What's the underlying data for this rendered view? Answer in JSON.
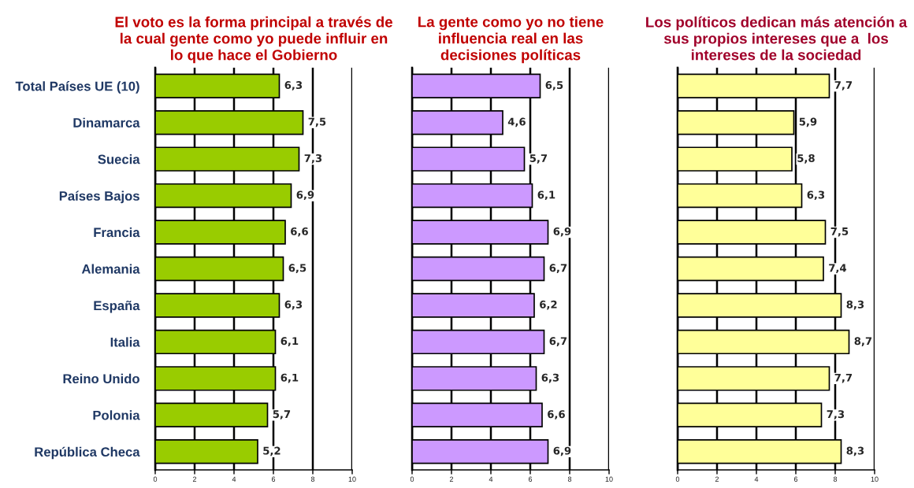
{
  "chart_data": [
    {
      "type": "bar",
      "orientation": "horizontal",
      "title": "El voto es la forma principal a través de\nla cual gente como yo puede influir en\nlo que hace el Gobierno",
      "categories": [
        "Total Países UE (10)",
        "Dinamarca",
        "Suecia",
        "Países Bajos",
        "Francia",
        "Alemania",
        "España",
        "Italia",
        "Reino Unido",
        "Polonia",
        "República Checa"
      ],
      "values": [
        6.3,
        7.5,
        7.3,
        6.9,
        6.6,
        6.5,
        6.3,
        6.1,
        6.1,
        5.7,
        5.2
      ],
      "color": "#99cc00",
      "value_labels": [
        "6,3",
        "7,5",
        "7,3",
        "6,9",
        "6,6",
        "6,5",
        "6,3",
        "6,1",
        "6,1",
        "5,7",
        "5,2"
      ],
      "xlim": [
        0,
        10
      ],
      "xticks": [
        0,
        2,
        4,
        6,
        8,
        10
      ],
      "grid": "x"
    },
    {
      "type": "bar",
      "orientation": "horizontal",
      "title": "La gente como yo no tiene\ninfluencia real en las\ndecisiones políticas",
      "categories": [
        null,
        null,
        null,
        null,
        null,
        null,
        null,
        null,
        null,
        null,
        null
      ],
      "values": [
        6.5,
        4.6,
        5.7,
        6.1,
        6.9,
        6.7,
        6.2,
        6.7,
        6.3,
        6.6,
        6.9
      ],
      "color": "#cc99ff",
      "value_labels": [
        "6,5",
        "4,6",
        "5,7",
        "6,1",
        "6,9",
        "6,7",
        "6,2",
        "6,7",
        "6,3",
        "6,6",
        "6,9"
      ],
      "xlim": [
        0,
        10
      ],
      "xticks": [
        0,
        2,
        4,
        6,
        8,
        10
      ],
      "grid": "x"
    },
    {
      "type": "bar",
      "orientation": "horizontal",
      "title": "Los políticos dedican más atención a\nsus propios intereses que a  los\nintereses de la sociedad",
      "categories": [
        null,
        null,
        null,
        null,
        null,
        null,
        null,
        null,
        null,
        null,
        null
      ],
      "values": [
        7.7,
        5.9,
        5.8,
        6.3,
        7.5,
        7.4,
        8.3,
        8.7,
        7.7,
        7.3,
        8.3
      ],
      "color": "#ffff99",
      "value_labels": [
        "7,7",
        "5,9",
        "5,8",
        "6,3",
        "7,5",
        "7,4",
        "8,3",
        "8,7",
        "7,7",
        "7,3",
        "8,3"
      ],
      "xlim": [
        0,
        10
      ],
      "xticks": [
        0,
        2,
        4,
        6,
        8,
        10
      ],
      "grid": "x"
    }
  ]
}
